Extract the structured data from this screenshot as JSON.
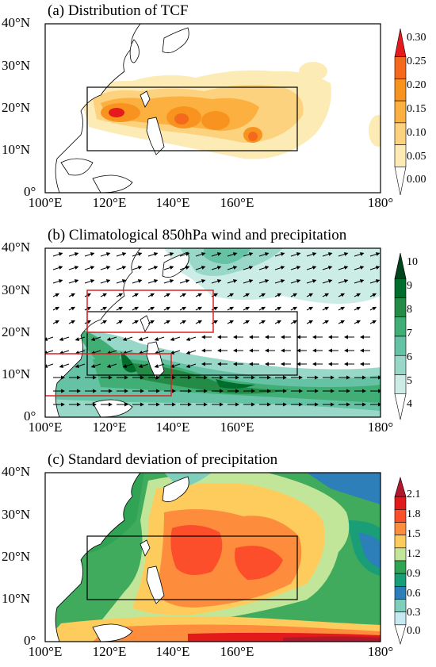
{
  "panels": [
    {
      "title": "(a) Distribution of TCF",
      "lat_labels": [
        "40°N",
        "30°N",
        "20°N",
        "10°N",
        "0°"
      ],
      "lon_labels": [
        "100°E",
        "120°E",
        "140°E",
        "160°E",
        "180°"
      ],
      "colorbar_ticks": [
        "0.30",
        "0.25",
        "0.20",
        "0.15",
        "0.10",
        "0.05",
        "0.00"
      ],
      "colorbar_colors": [
        "#e41a1c",
        "#f4691c",
        "#f7931e",
        "#fbb040",
        "#fdd27e",
        "#fdebb5",
        "#ffffff"
      ]
    },
    {
      "title": "(b) Climatological 850hPa wind and precipitation",
      "lat_labels": [
        "40°N",
        "30°N",
        "20°N",
        "10°N",
        "0°"
      ],
      "lon_labels": [
        "100°E",
        "120°E",
        "140°E",
        "160°E",
        "180°"
      ],
      "colorbar_ticks": [
        "10",
        "9",
        "8",
        "7",
        "6",
        "5",
        "4"
      ],
      "colorbar_colors": [
        "#00441b",
        "#006d2c",
        "#238b45",
        "#41ae76",
        "#66c2a4",
        "#99d8c9",
        "#ccece6",
        "#ffffff"
      ]
    },
    {
      "title": "(c) Standard deviation of precipitation",
      "lat_labels": [
        "40°N",
        "30°N",
        "20°N",
        "10°N",
        "0°"
      ],
      "lon_labels": [
        "100°E",
        "120°E",
        "140°E",
        "160°E",
        "180°"
      ],
      "colorbar_ticks": [
        "2.1",
        "1.8",
        "1.5",
        "1.2",
        "0.9",
        "0.6",
        "0.3",
        "0.0"
      ],
      "colorbar_colors": [
        "#b2182b",
        "#e31a1c",
        "#fc4e2a",
        "#fd8d3c",
        "#fecc5c",
        "#c2e699",
        "#31a354",
        "#1a9e77",
        "#2c7fb8",
        "#7fcdbb",
        "#c7e9f1",
        "#ffffff"
      ]
    }
  ],
  "map": {
    "extent": {
      "lon": [
        100,
        180
      ],
      "lat": [
        0,
        40
      ]
    },
    "main_box": {
      "lon": [
        110,
        160
      ],
      "lat": [
        10,
        25
      ]
    },
    "red_boxes": [
      {
        "lon": [
          110,
          140
        ],
        "lat": [
          20,
          30
        ]
      },
      {
        "lon": [
          100,
          130
        ],
        "lat": [
          5,
          15
        ]
      }
    ],
    "colors": {
      "box": "#000000",
      "red_box": "#e02020",
      "land": "#ffffff",
      "coast": "#000000",
      "arrow": "#000000"
    }
  }
}
